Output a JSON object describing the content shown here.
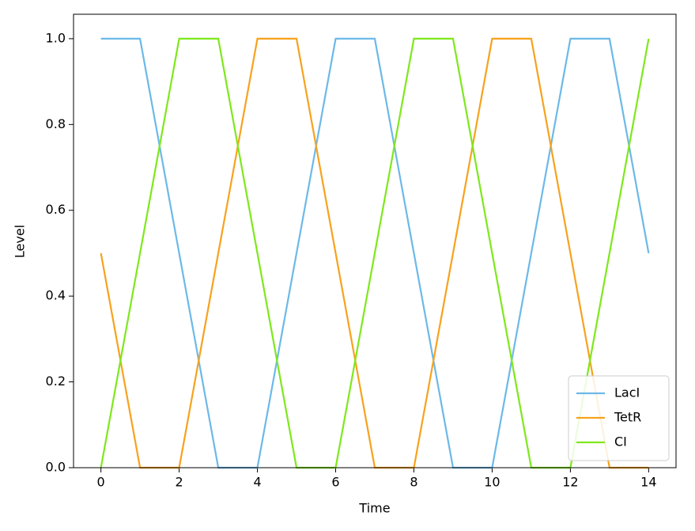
{
  "chart_data": {
    "type": "line",
    "x_label": "Time",
    "y_label": "Level",
    "x": [
      0,
      1,
      2,
      3,
      4,
      5,
      6,
      7,
      8,
      9,
      10,
      11,
      12,
      13,
      14
    ],
    "series": [
      {
        "name": "LacI",
        "color": "#6cb9e8",
        "values": [
          1,
          1,
          0.5,
          0,
          0,
          0.5,
          1,
          1,
          0.5,
          0,
          0,
          0.5,
          1,
          1,
          0.5
        ]
      },
      {
        "name": "TetR",
        "color": "#f7a21d",
        "values": [
          0.5,
          0,
          0,
          0.5,
          1,
          1,
          0.5,
          0,
          0,
          0.5,
          1,
          1,
          0.5,
          0,
          0
        ]
      },
      {
        "name": "CI",
        "color": "#7ee81c",
        "values": [
          0,
          0.5,
          1,
          1,
          0.5,
          0,
          0,
          0.5,
          1,
          1,
          0.5,
          0,
          0,
          0.5,
          1
        ]
      }
    ],
    "xlim": [
      -0.7,
      14.7
    ],
    "ylim": [
      0,
      1.057
    ],
    "xticks": [
      0,
      2,
      4,
      6,
      8,
      10,
      12,
      14
    ],
    "yticks": [
      {
        "value": 0,
        "label": "0.0"
      },
      {
        "value": 0.2,
        "label": "0.2"
      },
      {
        "value": 0.4,
        "label": "0.4"
      },
      {
        "value": 0.6,
        "label": "0.6"
      },
      {
        "value": 0.8,
        "label": "0.8"
      },
      {
        "value": 1,
        "label": "1.0"
      }
    ],
    "legend": "lower right",
    "grid": false
  }
}
